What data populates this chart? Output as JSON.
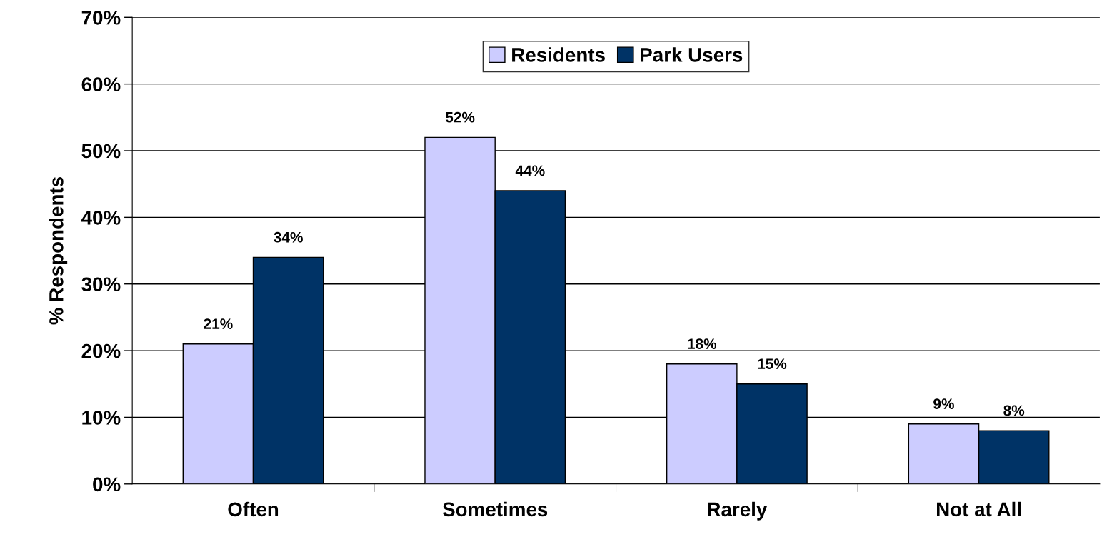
{
  "chart_data": {
    "type": "bar",
    "ylabel": "% Respondents",
    "categories": [
      "Often",
      "Sometimes",
      "Rarely",
      "Not at All"
    ],
    "series": [
      {
        "name": "Residents",
        "color": "#ccccff",
        "values": [
          21,
          52,
          18,
          9
        ],
        "value_labels": [
          "21%",
          "52%",
          "18%",
          "9%"
        ]
      },
      {
        "name": "Park Users",
        "color": "#003366",
        "values": [
          34,
          44,
          15,
          8
        ],
        "value_labels": [
          "34%",
          "44%",
          "15%",
          "8%"
        ]
      }
    ],
    "ylim": [
      0,
      70
    ],
    "yticks": [
      {
        "value": 0,
        "label": "0%"
      },
      {
        "value": 10,
        "label": "10%"
      },
      {
        "value": 20,
        "label": "20%"
      },
      {
        "value": 30,
        "label": "30%"
      },
      {
        "value": 40,
        "label": "40%"
      },
      {
        "value": 50,
        "label": "50%"
      },
      {
        "value": 60,
        "label": "60%"
      },
      {
        "value": 70,
        "label": "70%"
      }
    ],
    "grid": "y",
    "legend": "top"
  }
}
